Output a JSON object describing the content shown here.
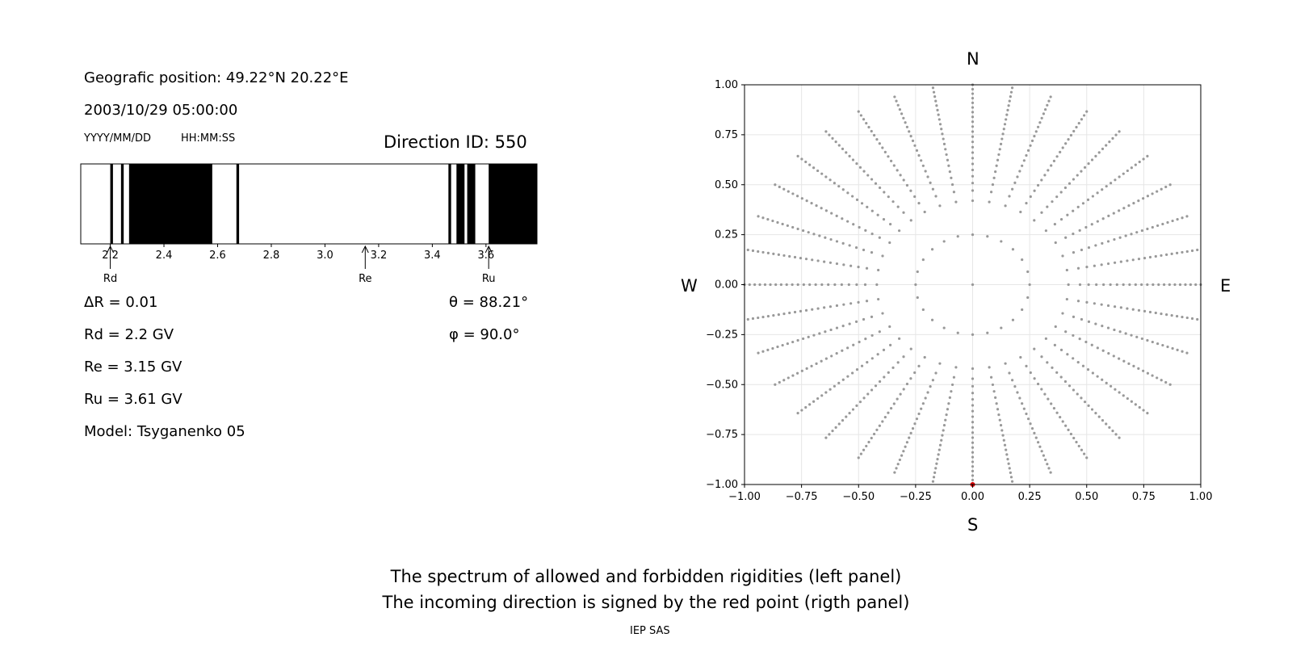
{
  "header": {
    "position_label": "Geografic position: 49.22°N 20.22°E",
    "datetime": "2003/10/29 05:00:00",
    "date_format": "YYYY/MM/DD",
    "time_format": "HH:MM:SS",
    "direction_id": "Direction ID: 550"
  },
  "params": {
    "delta_r": "ΔR = 0.01",
    "rd": "Rd = 2.2 GV",
    "re": "Re = 3.15 GV",
    "ru": "Ru = 3.61 GV",
    "model": "Model: Tsyganenko 05",
    "theta": "θ = 88.21°",
    "phi": "φ = 90.0°"
  },
  "compass": {
    "n": "N",
    "s": "S",
    "w": "W",
    "e": "E"
  },
  "caption": {
    "line1": "The spectrum of allowed and forbidden rigidities (left panel)",
    "line2": "The incoming direction is signed by the red point (rigth panel)",
    "credit": "IEP SAS"
  },
  "chart_data": [
    {
      "type": "bar",
      "xlim": [
        2.09,
        3.79
      ],
      "x_ticks": [
        "2.2",
        "2.4",
        "2.6",
        "2.8",
        "3.0",
        "3.2",
        "3.4",
        "3.6"
      ],
      "x_tick_values": [
        2.2,
        2.4,
        2.6,
        2.8,
        3.0,
        3.2,
        3.4,
        3.6
      ],
      "forbidden_ranges": [
        [
          2.2,
          2.21
        ],
        [
          2.24,
          2.25
        ],
        [
          2.27,
          2.58
        ],
        [
          2.67,
          2.68
        ],
        [
          3.46,
          3.47
        ],
        [
          3.49,
          3.52
        ],
        [
          3.53,
          3.56
        ],
        [
          3.61,
          3.79
        ]
      ],
      "markers": [
        {
          "label": "Rd",
          "value": 2.2
        },
        {
          "label": "Re",
          "value": 3.15
        },
        {
          "label": "Ru",
          "value": 3.61
        }
      ],
      "colors": {
        "forbidden": "#000000",
        "allowed": "#ffffff"
      }
    },
    {
      "type": "scatter",
      "xlim": [
        -1.0,
        1.0
      ],
      "ylim": [
        -1.0,
        1.0
      ],
      "x_ticks": [
        "−1.00",
        "−0.75",
        "−0.50",
        "−0.25",
        "0.00",
        "0.25",
        "0.50",
        "0.75",
        "1.00"
      ],
      "y_ticks": [
        "1.00",
        "0.75",
        "0.50",
        "0.25",
        "0.00",
        "−0.25",
        "−0.50",
        "−0.75",
        "−1.00"
      ],
      "tick_values": [
        -1.0,
        -0.75,
        -0.5,
        -0.25,
        0.0,
        0.25,
        0.5,
        0.75,
        1.0
      ],
      "grid": true,
      "rings": [
        0.25,
        0.42,
        0.51,
        0.58,
        0.65,
        0.71,
        0.77,
        0.83,
        0.89,
        0.95,
        1.0
      ],
      "inner_ring_count": 24,
      "spokes": 36,
      "spoke_radius_min": 0.42,
      "spoke_radius_max": 1.0,
      "spoke_points": 22,
      "highlight": {
        "x": 0.0,
        "y": -1.0,
        "color": "#dd0000"
      },
      "colors": {
        "points": "#999999"
      }
    }
  ]
}
